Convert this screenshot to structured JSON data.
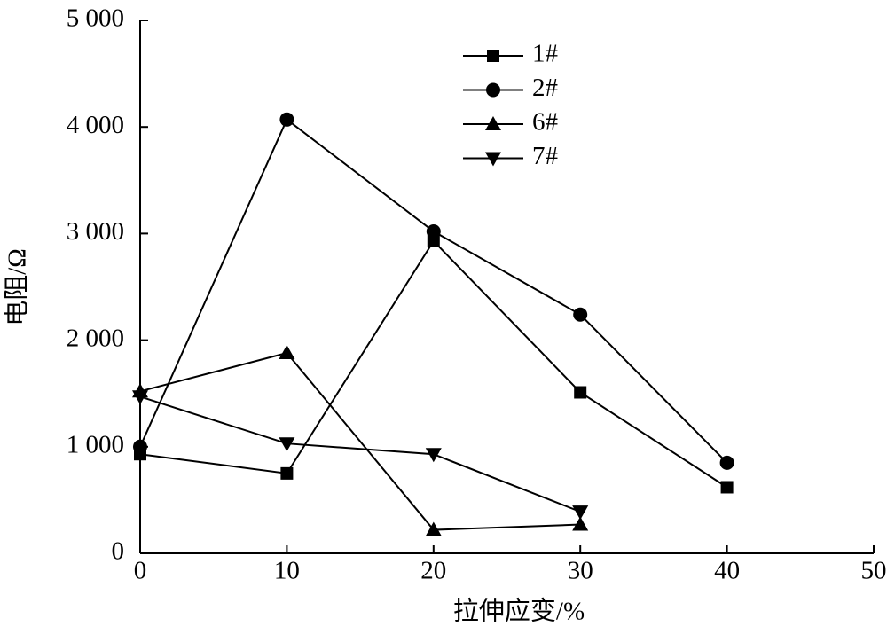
{
  "chart_data": {
    "type": "line",
    "xlabel": "拉伸应变/%",
    "ylabel": "电阻/Ω",
    "xlim": [
      0,
      50
    ],
    "xticks": [
      0,
      10,
      20,
      30,
      40,
      50
    ],
    "ylim": [
      0,
      5000
    ],
    "yticks": [
      0,
      {
        "value": 1000,
        "label": "1 000"
      },
      {
        "value": 2000,
        "label": "2 000"
      },
      {
        "value": 3000,
        "label": "3 000"
      },
      {
        "value": 4000,
        "label": "4 000"
      },
      {
        "value": 5000,
        "label": "5 000"
      }
    ],
    "x": [
      0,
      10,
      20,
      30,
      40
    ],
    "series": [
      {
        "name": "1#",
        "color": "#000000",
        "marker": "square",
        "values": [
          930,
          750,
          2930,
          1510,
          620
        ]
      },
      {
        "name": "2#",
        "color": "#000000",
        "marker": "circle",
        "values": [
          1000,
          4070,
          3020,
          2240,
          850
        ]
      },
      {
        "name": "6#",
        "color": "#000000",
        "marker": "triangle-up",
        "values": [
          1520,
          1880,
          220,
          270,
          null
        ]
      },
      {
        "name": "7#",
        "color": "#000000",
        "marker": "triangle-down",
        "values": [
          1470,
          1030,
          930,
          390,
          null
        ]
      }
    ],
    "legend": "upper-center"
  }
}
